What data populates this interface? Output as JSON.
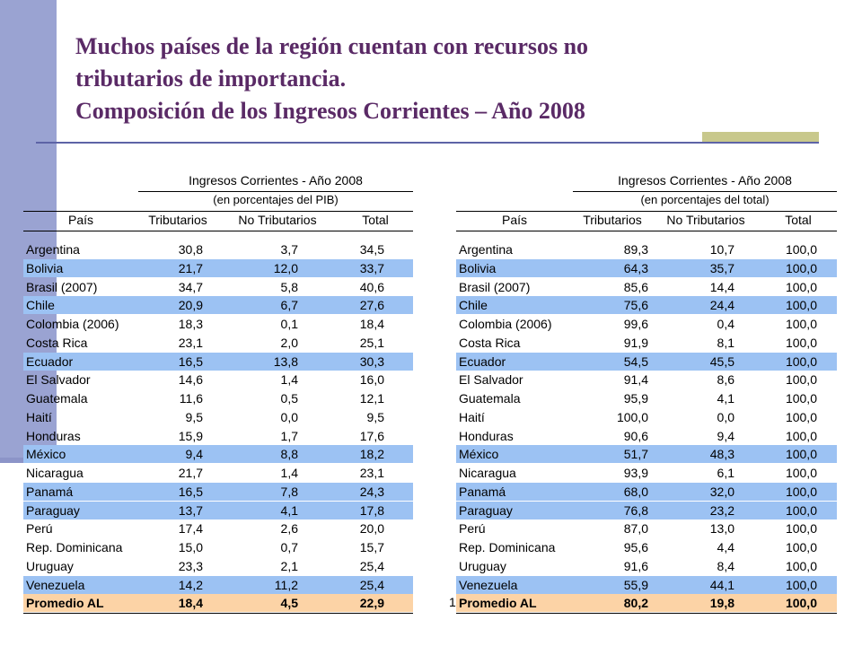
{
  "title": {
    "line1": "Muchos países de la región cuentan con recursos no",
    "line2": "tributarios de importancia.",
    "line3": "Composición de los Ingresos Corrientes – Año 2008"
  },
  "colors": {
    "band": "#9cc2f3",
    "total": "#fcd3a6",
    "title": "#5a2a66",
    "sidebar": "#9aa3d2"
  },
  "table_left": {
    "header_title": "Ingresos Corrientes - Año 2008",
    "header_sub": "(en porcentajes del PIB)",
    "columns": [
      "País",
      "Tributarios",
      "No Tributarios",
      "Total"
    ],
    "rows": [
      {
        "pais": "Argentina",
        "trib": "30,8",
        "notrib": "3,7",
        "total": "34,5",
        "hl": false
      },
      {
        "pais": "Bolivia",
        "trib": "21,7",
        "notrib": "12,0",
        "total": "33,7",
        "hl": true
      },
      {
        "pais": "Brasil  (2007)",
        "trib": "34,7",
        "notrib": "5,8",
        "total": "40,6",
        "hl": false
      },
      {
        "pais": "Chile",
        "trib": "20,9",
        "notrib": "6,7",
        "total": "27,6",
        "hl": true
      },
      {
        "pais": "Colombia  (2006)",
        "trib": "18,3",
        "notrib": "0,1",
        "total": "18,4",
        "hl": false
      },
      {
        "pais": "Costa Rica",
        "trib": "23,1",
        "notrib": "2,0",
        "total": "25,1",
        "hl": false
      },
      {
        "pais": "Ecuador",
        "trib": "16,5",
        "notrib": "13,8",
        "total": "30,3",
        "hl": true
      },
      {
        "pais": "El Salvador",
        "trib": "14,6",
        "notrib": "1,4",
        "total": "16,0",
        "hl": false
      },
      {
        "pais": "Guatemala",
        "trib": "11,6",
        "notrib": "0,5",
        "total": "12,1",
        "hl": false
      },
      {
        "pais": "Haití",
        "trib": "9,5",
        "notrib": "0,0",
        "total": "9,5",
        "hl": false
      },
      {
        "pais": "Honduras",
        "trib": "15,9",
        "notrib": "1,7",
        "total": "17,6",
        "hl": false
      },
      {
        "pais": "México",
        "trib": "9,4",
        "notrib": "8,8",
        "total": "18,2",
        "hl": true
      },
      {
        "pais": "Nicaragua",
        "trib": "21,7",
        "notrib": "1,4",
        "total": "23,1",
        "hl": false
      },
      {
        "pais": "Panamá",
        "trib": "16,5",
        "notrib": "7,8",
        "total": "24,3",
        "hl": true
      },
      {
        "pais": "Paraguay",
        "trib": "13,7",
        "notrib": "4,1",
        "total": "17,8",
        "hl": true
      },
      {
        "pais": "Perú",
        "trib": "17,4",
        "notrib": "2,6",
        "total": "20,0",
        "hl": false
      },
      {
        "pais": "Rep. Dominicana",
        "trib": "15,0",
        "notrib": "0,7",
        "total": "15,7",
        "hl": false
      },
      {
        "pais": "Uruguay",
        "trib": "23,3",
        "notrib": "2,1",
        "total": "25,4",
        "hl": false
      },
      {
        "pais": "Venezuela",
        "trib": "14,2",
        "notrib": "11,2",
        "total": "25,4",
        "hl": true
      }
    ],
    "total_row": {
      "pais": "Promedio AL",
      "trib": "18,4",
      "notrib": "4,5",
      "total": "22,9"
    }
  },
  "table_right": {
    "header_title": "Ingresos Corrientes - Año 2008",
    "header_sub": "(en porcentajes del total)",
    "columns": [
      "País",
      "Tributarios",
      "No Tributarios",
      "Total"
    ],
    "rows": [
      {
        "pais": "Argentina",
        "trib": "89,3",
        "notrib": "10,7",
        "total": "100,0",
        "hl": false
      },
      {
        "pais": "Bolivia",
        "trib": "64,3",
        "notrib": "35,7",
        "total": "100,0",
        "hl": true
      },
      {
        "pais": "Brasil  (2007)",
        "trib": "85,6",
        "notrib": "14,4",
        "total": "100,0",
        "hl": false
      },
      {
        "pais": "Chile",
        "trib": "75,6",
        "notrib": "24,4",
        "total": "100,0",
        "hl": true
      },
      {
        "pais": "Colombia  (2006)",
        "trib": "99,6",
        "notrib": "0,4",
        "total": "100,0",
        "hl": false
      },
      {
        "pais": "Costa Rica",
        "trib": "91,9",
        "notrib": "8,1",
        "total": "100,0",
        "hl": false
      },
      {
        "pais": "Ecuador",
        "trib": "54,5",
        "notrib": "45,5",
        "total": "100,0",
        "hl": true
      },
      {
        "pais": "El Salvador",
        "trib": "91,4",
        "notrib": "8,6",
        "total": "100,0",
        "hl": false
      },
      {
        "pais": "Guatemala",
        "trib": "95,9",
        "notrib": "4,1",
        "total": "100,0",
        "hl": false
      },
      {
        "pais": "Haití",
        "trib": "100,0",
        "notrib": "0,0",
        "total": "100,0",
        "hl": false
      },
      {
        "pais": "Honduras",
        "trib": "90,6",
        "notrib": "9,4",
        "total": "100,0",
        "hl": false
      },
      {
        "pais": "México",
        "trib": "51,7",
        "notrib": "48,3",
        "total": "100,0",
        "hl": true
      },
      {
        "pais": "Nicaragua",
        "trib": "93,9",
        "notrib": "6,1",
        "total": "100,0",
        "hl": false
      },
      {
        "pais": "Panamá",
        "trib": "68,0",
        "notrib": "32,0",
        "total": "100,0",
        "hl": true
      },
      {
        "pais": "Paraguay",
        "trib": "76,8",
        "notrib": "23,2",
        "total": "100,0",
        "hl": true
      },
      {
        "pais": "Perú",
        "trib": "87,0",
        "notrib": "13,0",
        "total": "100,0",
        "hl": false
      },
      {
        "pais": "Rep. Dominicana",
        "trib": "95,6",
        "notrib": "4,4",
        "total": "100,0",
        "hl": false
      },
      {
        "pais": "Uruguay",
        "trib": "91,6",
        "notrib": "8,4",
        "total": "100,0",
        "hl": false
      },
      {
        "pais": "Venezuela",
        "trib": "55,9",
        "notrib": "44,1",
        "total": "100,0",
        "hl": true
      }
    ],
    "total_row": {
      "pais": "Promedio AL",
      "trib": "80,2",
      "notrib": "19,8",
      "total": "100,0"
    }
  },
  "page_number": "1"
}
